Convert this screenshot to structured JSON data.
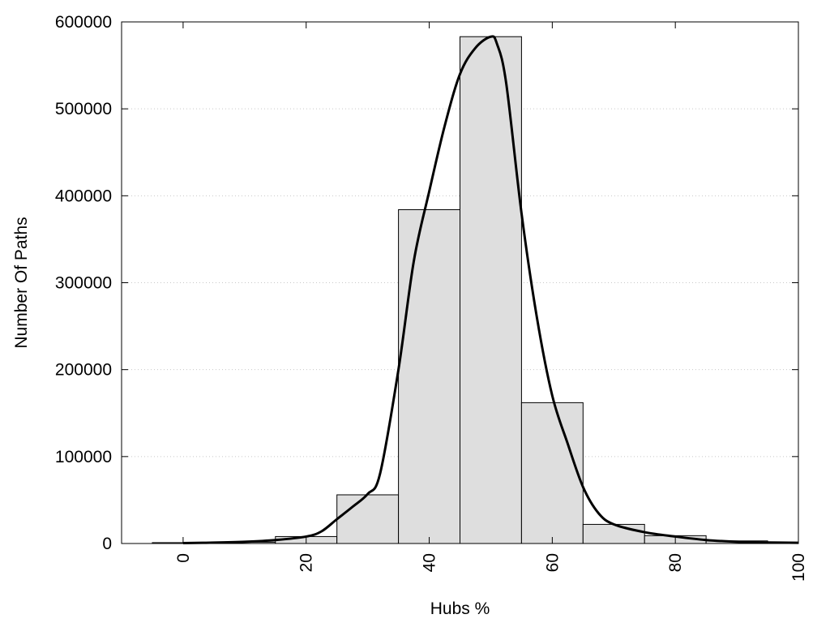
{
  "chart_data": {
    "type": "bar",
    "title": "",
    "xlabel": "Hubs %",
    "ylabel": "Number Of Paths",
    "xlim": [
      -10,
      100
    ],
    "ylim": [
      0,
      600000
    ],
    "grid": "horizontal dotted",
    "x_ticks": [
      0,
      20,
      40,
      60,
      80,
      100
    ],
    "y_ticks": [
      0,
      100000,
      200000,
      300000,
      400000,
      500000,
      600000
    ],
    "bin_width": 10,
    "bins": [
      {
        "center": 0,
        "value": 1000
      },
      {
        "center": 10,
        "value": 1500
      },
      {
        "center": 20,
        "value": 8000
      },
      {
        "center": 30,
        "value": 56000
      },
      {
        "center": 40,
        "value": 384000
      },
      {
        "center": 50,
        "value": 583000
      },
      {
        "center": 60,
        "value": 162000
      },
      {
        "center": 70,
        "value": 22000
      },
      {
        "center": 80,
        "value": 9000
      },
      {
        "center": 90,
        "value": 3000
      }
    ],
    "curve": {
      "x": [
        0,
        5,
        10,
        15,
        20,
        22.5,
        25,
        27.5,
        30,
        32,
        35,
        37.5,
        40,
        42.5,
        45,
        47.5,
        50,
        51,
        52.5,
        55,
        57.5,
        60,
        62.5,
        65,
        67.5,
        70,
        75,
        80,
        85,
        90,
        95,
        100
      ],
      "y": [
        500,
        1000,
        2000,
        4000,
        8000,
        14000,
        28000,
        42000,
        57000,
        80000,
        200000,
        325000,
        405000,
        480000,
        540000,
        570000,
        583000,
        575000,
        530000,
        380000,
        260000,
        170000,
        115000,
        65000,
        35000,
        22000,
        13000,
        8000,
        4000,
        2000,
        1200,
        800
      ]
    }
  }
}
